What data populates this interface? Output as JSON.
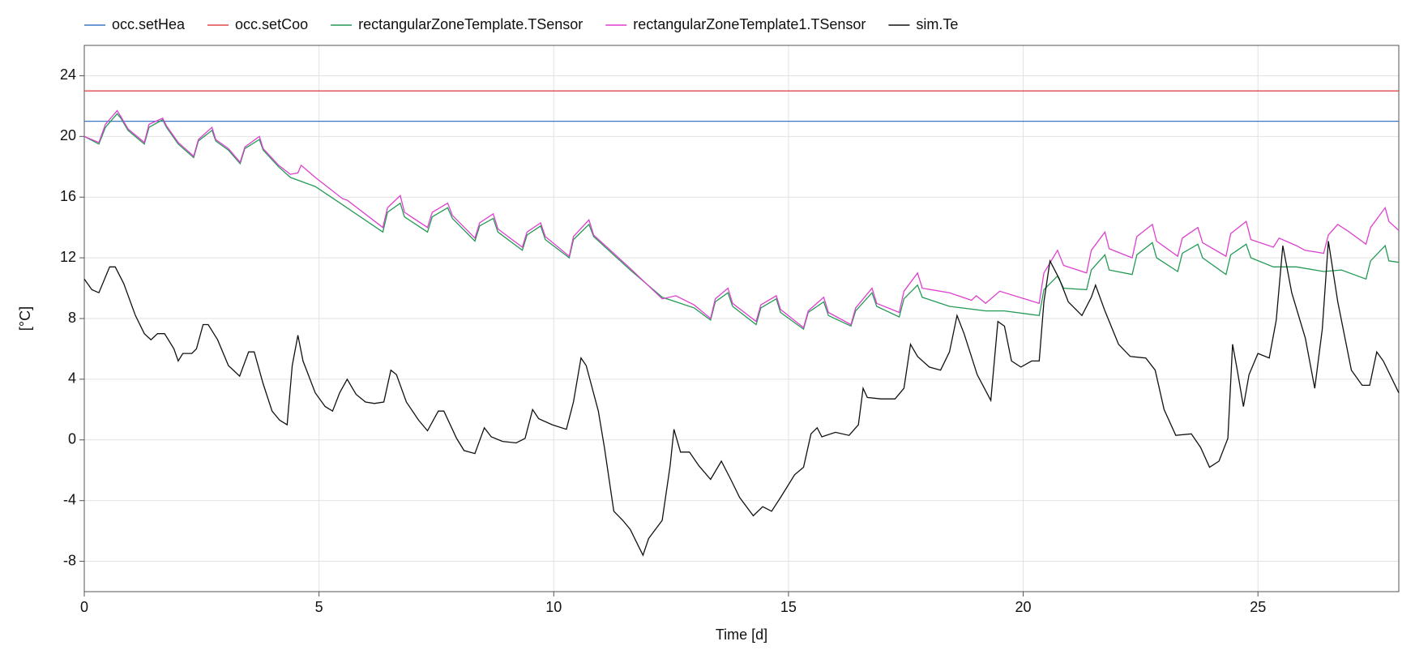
{
  "chart_data": {
    "type": "line",
    "xlabel": "Time [d]",
    "ylabel": "[°C]",
    "xlim": [
      0,
      28
    ],
    "xticks": [
      0,
      5,
      10,
      15,
      20,
      25
    ],
    "ylim": [
      -10,
      26
    ],
    "yticks": [
      -8,
      -4,
      0,
      4,
      8,
      12,
      16,
      20,
      24
    ],
    "grid": true,
    "legend": "top",
    "series": [
      {
        "name": "occ.setHea",
        "color": "#3d78c6",
        "x": [
          0,
          28
        ],
        "values": [
          21,
          21
        ]
      },
      {
        "name": "occ.setCoo",
        "color": "#e2474b",
        "x": [
          0,
          28
        ],
        "values": [
          23,
          23
        ]
      },
      {
        "name": "rectangularZoneTemplate.TSensor",
        "color": "#239a55",
        "x": [
          0,
          0.31,
          0.45,
          0.7,
          0.78,
          0.93,
          1.28,
          1.38,
          1.67,
          1.75,
          2.0,
          2.33,
          2.43,
          2.72,
          2.8,
          3.07,
          3.32,
          3.42,
          3.73,
          3.81,
          4.14,
          4.39,
          4.92,
          5.5,
          6.36,
          6.46,
          6.73,
          6.82,
          7.31,
          7.41,
          7.74,
          7.84,
          8.32,
          8.42,
          8.71,
          8.81,
          9.33,
          9.43,
          9.72,
          9.82,
          10.33,
          10.42,
          10.75,
          10.85,
          11.63,
          12.31,
          12.99,
          13.34,
          13.44,
          13.71,
          13.81,
          14.31,
          14.41,
          14.74,
          14.83,
          15.32,
          15.42,
          15.75,
          15.85,
          16.33,
          16.43,
          16.78,
          16.88,
          17.36,
          17.46,
          17.75,
          17.85,
          18.43,
          19.2,
          19.6,
          20.34,
          20.44,
          20.73,
          20.86,
          21.35,
          21.45,
          21.74,
          21.83,
          22.32,
          22.42,
          22.75,
          22.84,
          23.29,
          23.39,
          23.72,
          23.82,
          24.32,
          24.42,
          24.75,
          24.85,
          25.33,
          25.82,
          26.4,
          26.78,
          27.3,
          27.4,
          27.71,
          27.79,
          28.0
        ],
        "values": [
          20.0,
          19.5,
          20.6,
          21.5,
          21.2,
          20.4,
          19.5,
          20.6,
          21.1,
          20.6,
          19.5,
          18.6,
          19.7,
          20.4,
          19.7,
          19.1,
          18.2,
          19.2,
          19.8,
          19.1,
          18.0,
          17.3,
          16.7,
          15.5,
          13.7,
          15.0,
          15.6,
          14.7,
          13.7,
          14.7,
          15.3,
          14.6,
          13.1,
          14.1,
          14.6,
          13.7,
          12.5,
          13.5,
          14.1,
          13.2,
          12.0,
          13.2,
          14.2,
          13.4,
          11.2,
          9.4,
          8.7,
          7.9,
          9.1,
          9.7,
          8.8,
          7.6,
          8.7,
          9.3,
          8.4,
          7.3,
          8.4,
          9.1,
          8.2,
          7.5,
          8.5,
          9.7,
          8.8,
          8.1,
          9.3,
          10.2,
          9.4,
          8.8,
          8.5,
          8.5,
          8.2,
          9.9,
          10.8,
          10.0,
          9.9,
          11.2,
          12.2,
          11.2,
          10.9,
          12.2,
          13.0,
          12.0,
          11.1,
          12.3,
          12.9,
          12.0,
          10.9,
          12.2,
          12.9,
          12.0,
          11.4,
          11.4,
          11.1,
          11.2,
          10.6,
          11.8,
          12.8,
          11.8,
          11.7
        ]
      },
      {
        "name": "rectangularZoneTemplate1.TSensor",
        "color": "#dd3fcf",
        "x": [
          0,
          0.31,
          0.45,
          0.7,
          0.78,
          0.93,
          1.28,
          1.38,
          1.67,
          1.75,
          2.0,
          2.33,
          2.43,
          2.72,
          2.8,
          3.07,
          3.32,
          3.42,
          3.73,
          3.81,
          4.14,
          4.39,
          4.55,
          4.62,
          4.92,
          5.5,
          5.6,
          6.36,
          6.46,
          6.73,
          6.82,
          7.31,
          7.41,
          7.74,
          7.84,
          8.32,
          8.42,
          8.71,
          8.81,
          9.33,
          9.43,
          9.72,
          9.82,
          10.33,
          10.42,
          10.75,
          10.85,
          11.63,
          12.31,
          12.6,
          12.99,
          13.34,
          13.44,
          13.71,
          13.81,
          14.31,
          14.41,
          14.74,
          14.83,
          15.32,
          15.42,
          15.75,
          15.85,
          16.33,
          16.43,
          16.78,
          16.88,
          17.36,
          17.46,
          17.75,
          17.85,
          18.43,
          18.9,
          19.0,
          19.2,
          19.5,
          20.34,
          20.44,
          20.73,
          20.86,
          21.35,
          21.45,
          21.74,
          21.83,
          22.32,
          22.42,
          22.75,
          22.84,
          23.29,
          23.39,
          23.72,
          23.82,
          24.32,
          24.42,
          24.75,
          24.85,
          25.33,
          25.45,
          25.82,
          26.0,
          26.4,
          26.5,
          26.7,
          26.9,
          27.3,
          27.4,
          27.71,
          27.79,
          28.0
        ],
        "values": [
          20.0,
          19.6,
          20.8,
          21.7,
          21.3,
          20.5,
          19.6,
          20.8,
          21.2,
          20.7,
          19.6,
          18.7,
          19.8,
          20.6,
          19.8,
          19.2,
          18.3,
          19.3,
          20.0,
          19.2,
          18.1,
          17.5,
          17.6,
          18.1,
          17.3,
          15.9,
          15.8,
          14.0,
          15.3,
          16.1,
          15.0,
          14.0,
          15.0,
          15.6,
          14.8,
          13.3,
          14.3,
          14.9,
          13.9,
          12.7,
          13.7,
          14.3,
          13.4,
          12.1,
          13.4,
          14.5,
          13.5,
          11.3,
          9.3,
          9.5,
          8.9,
          8.0,
          9.3,
          10.0,
          9.0,
          7.8,
          8.9,
          9.5,
          8.6,
          7.4,
          8.5,
          9.4,
          8.4,
          7.6,
          8.7,
          10.0,
          9.0,
          8.4,
          9.8,
          11.0,
          10.0,
          9.7,
          9.2,
          9.5,
          9.0,
          9.8,
          9.0,
          11.0,
          12.5,
          11.5,
          11.0,
          12.5,
          13.7,
          12.6,
          12.0,
          13.4,
          14.2,
          13.1,
          12.1,
          13.3,
          14.0,
          13.0,
          12.1,
          13.6,
          14.4,
          13.2,
          12.7,
          13.3,
          12.8,
          12.5,
          12.3,
          13.5,
          14.2,
          13.8,
          12.9,
          14.0,
          15.3,
          14.4,
          13.8
        ]
      },
      {
        "name": "sim.Te",
        "color": "#111111",
        "x": [
          0,
          0.16,
          0.31,
          0.54,
          0.66,
          0.84,
          1.09,
          1.28,
          1.42,
          1.56,
          1.71,
          1.91,
          2.0,
          2.1,
          2.29,
          2.39,
          2.53,
          2.64,
          2.84,
          3.07,
          3.31,
          3.5,
          3.62,
          3.81,
          4.0,
          4.16,
          4.32,
          4.43,
          4.55,
          4.66,
          4.92,
          5.13,
          5.29,
          5.44,
          5.6,
          5.79,
          5.99,
          6.18,
          6.38,
          6.53,
          6.65,
          6.86,
          7.12,
          7.31,
          7.54,
          7.66,
          7.93,
          8.09,
          8.32,
          8.52,
          8.67,
          8.91,
          9.2,
          9.39,
          9.55,
          9.68,
          9.97,
          10.27,
          10.42,
          10.58,
          10.69,
          10.95,
          11.08,
          11.28,
          11.47,
          11.63,
          11.82,
          11.9,
          12.02,
          12.31,
          12.48,
          12.56,
          12.7,
          12.89,
          13.09,
          13.34,
          13.57,
          13.77,
          13.96,
          14.25,
          14.45,
          14.64,
          14.83,
          15.13,
          15.32,
          15.48,
          15.61,
          15.71,
          16.0,
          16.29,
          16.49,
          16.59,
          16.68,
          16.97,
          17.27,
          17.46,
          17.6,
          17.75,
          18.0,
          18.24,
          18.43,
          18.59,
          18.74,
          19.02,
          19.31,
          19.46,
          19.6,
          19.75,
          19.95,
          20.18,
          20.34,
          20.44,
          20.57,
          20.77,
          20.96,
          21.25,
          21.45,
          21.54,
          21.74,
          22.03,
          22.28,
          22.61,
          22.81,
          23.0,
          23.25,
          23.58,
          23.78,
          23.97,
          24.17,
          24.36,
          24.46,
          24.56,
          24.69,
          24.81,
          25.0,
          25.24,
          25.39,
          25.53,
          25.72,
          26.01,
          26.21,
          26.37,
          26.5,
          26.7,
          26.99,
          27.22,
          27.38,
          27.53,
          27.67,
          28.0
        ],
        "values": [
          10.6,
          9.9,
          9.7,
          11.4,
          11.4,
          10.3,
          8.2,
          7.0,
          6.6,
          7.0,
          7.0,
          6.0,
          5.2,
          5.7,
          5.7,
          6.0,
          7.6,
          7.6,
          6.6,
          4.9,
          4.2,
          5.8,
          5.8,
          3.7,
          1.9,
          1.3,
          1.0,
          4.9,
          6.9,
          5.2,
          3.1,
          2.2,
          1.9,
          3.1,
          4.0,
          3.0,
          2.5,
          2.4,
          2.5,
          4.6,
          4.3,
          2.5,
          1.3,
          0.6,
          1.9,
          1.9,
          0.1,
          -0.7,
          -0.9,
          0.8,
          0.2,
          -0.1,
          -0.2,
          0.1,
          2.0,
          1.4,
          1.0,
          0.7,
          2.5,
          5.4,
          4.9,
          1.9,
          -0.5,
          -4.7,
          -5.3,
          -5.9,
          -7.1,
          -7.6,
          -6.5,
          -5.3,
          -1.7,
          0.7,
          -0.8,
          -0.8,
          -1.7,
          -2.6,
          -1.4,
          -2.6,
          -3.8,
          -5.0,
          -4.4,
          -4.7,
          -3.8,
          -2.3,
          -1.8,
          0.4,
          0.8,
          0.2,
          0.5,
          0.3,
          1.0,
          3.4,
          2.8,
          2.7,
          2.7,
          3.4,
          6.3,
          5.5,
          4.8,
          4.6,
          5.8,
          8.2,
          7.0,
          4.3,
          2.6,
          7.8,
          7.5,
          5.2,
          4.8,
          5.2,
          5.2,
          9.1,
          11.8,
          10.6,
          9.1,
          8.2,
          9.4,
          10.2,
          8.5,
          6.3,
          5.5,
          5.4,
          4.6,
          2.0,
          0.3,
          0.4,
          -0.5,
          -1.8,
          -1.4,
          0.1,
          6.3,
          4.6,
          2.2,
          4.3,
          5.7,
          5.4,
          7.9,
          12.8,
          9.7,
          6.7,
          3.4,
          7.3,
          13.1,
          9.1,
          4.6,
          3.6,
          3.6,
          5.8,
          5.2,
          3.1
        ]
      }
    ]
  }
}
